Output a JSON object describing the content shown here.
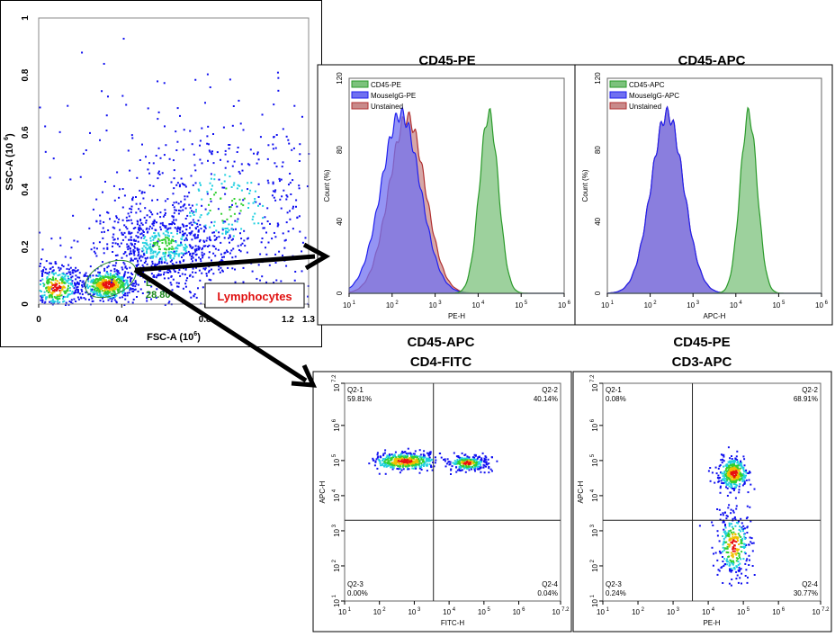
{
  "chart_data": [
    {
      "type": "scatter",
      "id": "fsc-ssc",
      "xlabel": "FSC-A",
      "xlabel_exp": "6",
      "ylabel": "SSC-A",
      "ylabel_exp": "6",
      "xlim": [
        0,
        1.3
      ],
      "ylim": [
        0,
        1
      ],
      "xticks": [
        "0",
        "0.4",
        "0.8",
        "1.2",
        "1.3"
      ],
      "xtick_values": [
        0,
        0.4,
        0.8,
        1.2,
        1.3
      ],
      "yticks": [
        "0",
        "0.2",
        "0.4",
        "0.6",
        "0.8",
        "1"
      ],
      "ytick_values": [
        0,
        0.2,
        0.4,
        0.6,
        0.8,
        1
      ],
      "clusters": [
        {
          "x": 0.33,
          "y": 0.07,
          "sx": 0.06,
          "sy": 0.025,
          "n": 500
        },
        {
          "x": 0.08,
          "y": 0.06,
          "sx": 0.06,
          "sy": 0.04,
          "n": 350
        },
        {
          "x": 0.6,
          "y": 0.21,
          "sx": 0.15,
          "sy": 0.07,
          "n": 700
        },
        {
          "x": 0.9,
          "y": 0.35,
          "sx": 0.25,
          "sy": 0.15,
          "n": 400
        }
      ],
      "gate": {
        "name": "Lymphocytes",
        "short": "L",
        "percent": "28.80"
      }
    },
    {
      "type": "area",
      "id": "hist-pe",
      "title": "CD45-PE",
      "xlabel": "PE-H",
      "ylabel": "Count (%)",
      "xlim_log10": [
        1,
        6
      ],
      "ylim": [
        0,
        120
      ],
      "yticks": [
        "0",
        "40",
        "80",
        "120"
      ],
      "xticks": [
        "1",
        "2",
        "3",
        "4",
        "5",
        "6"
      ],
      "series": [
        {
          "name": "CD45-PE",
          "color": "#2a9a2a",
          "fill": "#7cc27c",
          "peak_log10": 4.25,
          "sd": 0.22,
          "height": 100
        },
        {
          "name": "MouseIgG-PE",
          "color": "#2020ee",
          "fill": "#7070f0",
          "peak_log10": 2.2,
          "sd": 0.45,
          "height": 100
        },
        {
          "name": "Unstained",
          "color": "#b03030",
          "fill": "#c88a8a",
          "peak_log10": 2.35,
          "sd": 0.42,
          "height": 98
        }
      ]
    },
    {
      "type": "area",
      "id": "hist-apc",
      "title": "CD45-APC",
      "xlabel": "APC-H",
      "ylabel": "Count (%)",
      "xlim_log10": [
        1,
        6
      ],
      "ylim": [
        0,
        120
      ],
      "yticks": [
        "0",
        "40",
        "80",
        "120"
      ],
      "xticks": [
        "1",
        "2",
        "3",
        "4",
        "5",
        "6"
      ],
      "series": [
        {
          "name": "CD45-APC",
          "color": "#2a9a2a",
          "fill": "#7cc27c",
          "peak_log10": 4.3,
          "sd": 0.2,
          "height": 100
        },
        {
          "name": "MouseIgG-APC",
          "color": "#2020ee",
          "fill": "#7070f0",
          "peak_log10": 2.4,
          "sd": 0.38,
          "height": 100
        },
        {
          "name": "Unstained",
          "color": "#b03030",
          "fill": "#c88a8a",
          "peak_log10": 2.4,
          "sd": 0.38,
          "height": 100
        }
      ]
    },
    {
      "type": "scatter",
      "id": "dot-cd4",
      "title": [
        "CD45-APC",
        "CD4-FITC"
      ],
      "xlabel": "FITC-H",
      "ylabel": "APC-H",
      "xlim_log10": [
        1,
        7.2
      ],
      "ylim_log10": [
        1,
        7.2
      ],
      "xticks": [
        "1",
        "2",
        "3",
        "4",
        "5",
        "6",
        "7.2"
      ],
      "yticks": [
        "1",
        "2",
        "3",
        "4",
        "5",
        "6",
        "7.2"
      ],
      "quad_x_log10": 3.55,
      "quad_y_log10": 3.3,
      "quadrants": [
        {
          "name": "Q2-1",
          "pct": "59.81%"
        },
        {
          "name": "Q2-2",
          "pct": "40.14%"
        },
        {
          "name": "Q2-3",
          "pct": "0.00%"
        },
        {
          "name": "Q2-4",
          "pct": "0.04%"
        }
      ],
      "clusters": [
        {
          "x": 2.7,
          "y": 5.0,
          "sx": 0.45,
          "sy": 0.12,
          "n": 450
        },
        {
          "x": 4.5,
          "y": 4.95,
          "sx": 0.3,
          "sy": 0.12,
          "n": 250
        }
      ]
    },
    {
      "type": "scatter",
      "id": "dot-cd3",
      "title": [
        "CD45-PE",
        "CD3-APC"
      ],
      "xlabel": "PE-H",
      "ylabel": "APC-H",
      "xlim_log10": [
        1,
        7.2
      ],
      "ylim_log10": [
        1,
        7.2
      ],
      "xticks": [
        "1",
        "2",
        "3",
        "4",
        "5",
        "6",
        "7.2"
      ],
      "yticks": [
        "1",
        "2",
        "3",
        "4",
        "5",
        "6",
        "7.2"
      ],
      "quad_x_log10": 3.55,
      "quad_y_log10": 3.3,
      "quadrants": [
        {
          "name": "Q2-1",
          "pct": "0.08%"
        },
        {
          "name": "Q2-2",
          "pct": "68.91%"
        },
        {
          "name": "Q2-3",
          "pct": "0.24%"
        },
        {
          "name": "Q2-4",
          "pct": "30.77%"
        }
      ],
      "clusters": [
        {
          "x": 4.7,
          "y": 4.65,
          "sx": 0.2,
          "sy": 0.22,
          "n": 400
        },
        {
          "x": 4.7,
          "y": 2.6,
          "sx": 0.25,
          "sy": 0.5,
          "n": 300
        }
      ]
    }
  ]
}
